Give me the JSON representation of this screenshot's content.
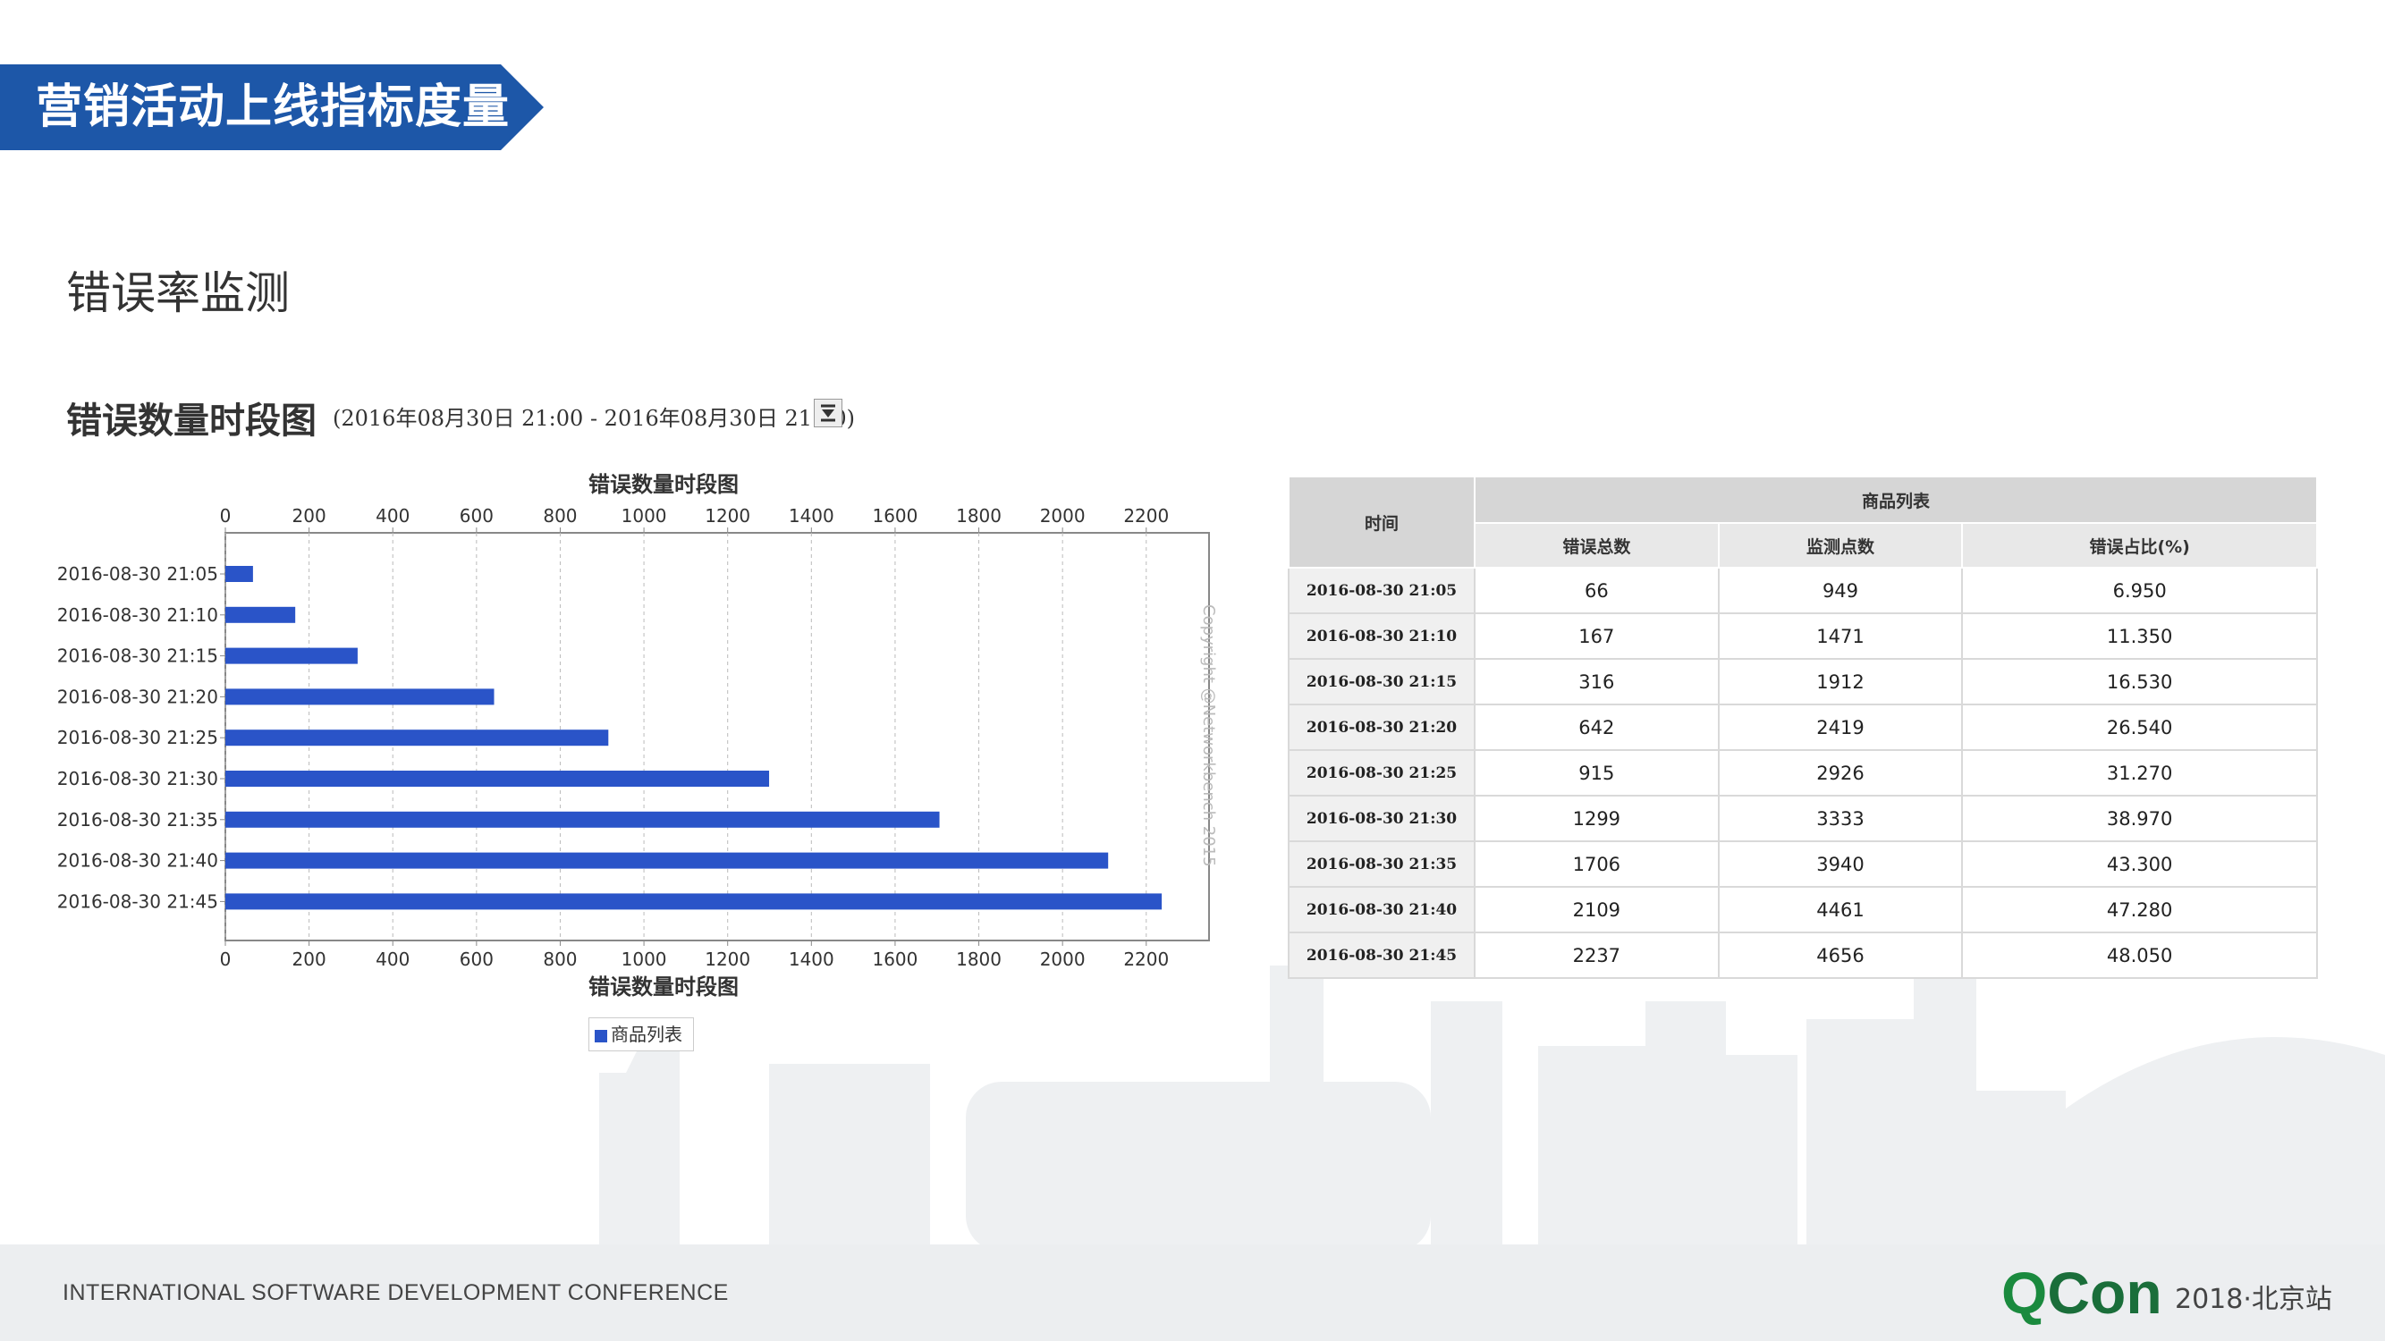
{
  "header": {
    "title": "营销活动上线指标度量"
  },
  "section": {
    "title": "错误率监测"
  },
  "panel": {
    "title": "错误数量时段图",
    "range": "(2016年08月30日 21:00 - 2016年08月30日 21:50)"
  },
  "chart_data": {
    "type": "bar",
    "orientation": "horizontal",
    "title": "错误数量时段图",
    "xlabel": "错误数量时段图",
    "categories": [
      "2016-08-30 21:05",
      "2016-08-30 21:10",
      "2016-08-30 21:15",
      "2016-08-30 21:20",
      "2016-08-30 21:25",
      "2016-08-30 21:30",
      "2016-08-30 21:35",
      "2016-08-30 21:40",
      "2016-08-30 21:45"
    ],
    "series": [
      {
        "name": "商品列表",
        "values": [
          66,
          167,
          316,
          642,
          915,
          1299,
          1706,
          2109,
          2237
        ],
        "color": "#2a54c8"
      }
    ],
    "xlim": [
      0,
      2350
    ],
    "ticks": [
      0,
      200,
      400,
      600,
      800,
      1000,
      1200,
      1400,
      1600,
      1800,
      2000,
      2200
    ],
    "grid": true,
    "legend": "bottom",
    "copyright": "Copyright @Networkbench 2015"
  },
  "table": {
    "time_header": "时间",
    "group_header": "商品列表",
    "columns": [
      "错误总数",
      "监测点数",
      "错误占比(%)"
    ],
    "rows": [
      {
        "time": "2016-08-30 21:05",
        "errors": "66",
        "points": "949",
        "ratio": "6.950"
      },
      {
        "time": "2016-08-30 21:10",
        "errors": "167",
        "points": "1471",
        "ratio": "11.350"
      },
      {
        "time": "2016-08-30 21:15",
        "errors": "316",
        "points": "1912",
        "ratio": "16.530"
      },
      {
        "time": "2016-08-30 21:20",
        "errors": "642",
        "points": "2419",
        "ratio": "26.540"
      },
      {
        "time": "2016-08-30 21:25",
        "errors": "915",
        "points": "2926",
        "ratio": "31.270"
      },
      {
        "time": "2016-08-30 21:30",
        "errors": "1299",
        "points": "3333",
        "ratio": "38.970"
      },
      {
        "time": "2016-08-30 21:35",
        "errors": "1706",
        "points": "3940",
        "ratio": "43.300"
      },
      {
        "time": "2016-08-30 21:40",
        "errors": "2109",
        "points": "4461",
        "ratio": "47.280"
      },
      {
        "time": "2016-08-30 21:45",
        "errors": "2237",
        "points": "4656",
        "ratio": "48.050"
      }
    ]
  },
  "footer": {
    "conference": "INTERNATIONAL SOFTWARE DEVELOPMENT CONFERENCE",
    "logo_q": "Q",
    "logo_rest": "Con",
    "edition": "2018·北京站"
  },
  "colors": {
    "banner": "#1d57a8",
    "bar": "#2a54c8",
    "logo": "#1a8a3e"
  }
}
